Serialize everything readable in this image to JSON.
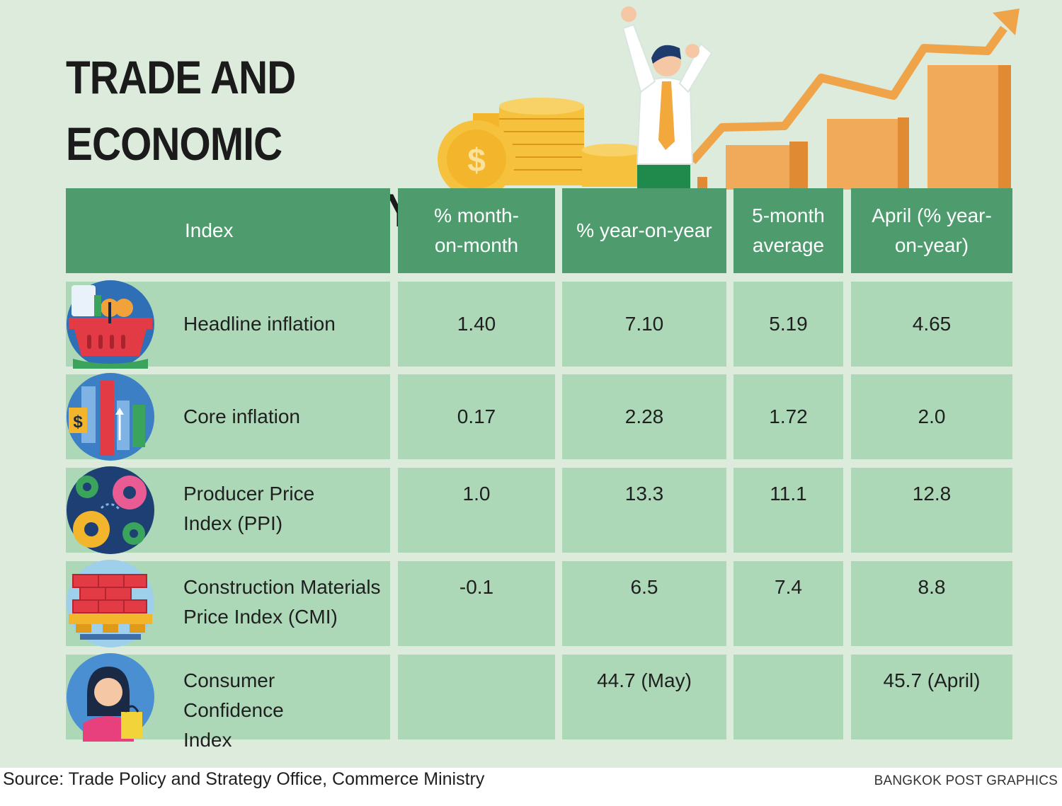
{
  "title_line1": "TRADE AND ECONOMIC",
  "title_line2": "INDICES FOR MAY",
  "source": "Source: Trade Policy and Strategy Office, Commerce Ministry",
  "credit": "BANGKOK POST GRAPHICS",
  "colors": {
    "background": "#dcebdc",
    "header": "#4e9c6e",
    "cell": "#acd8b8",
    "arrow": "#f0a44a",
    "bar": "#f1a95a",
    "coin": "#f6c23e"
  },
  "icons": [
    "shopping-basket-icon",
    "price-chart-icon",
    "gears-icon",
    "bricks-icon",
    "shopper-icon"
  ],
  "chart_data": {
    "type": "table",
    "title": "TRADE AND ECONOMIC INDICES FOR MAY",
    "columns": [
      "Index",
      "% month-on-month",
      "% year-on-year",
      "5-month average",
      "April (% year-on-year)"
    ],
    "rows": [
      {
        "index": "Headline inflation",
        "mom": "1.40",
        "yoy": "7.10",
        "avg5": "5.19",
        "april": "4.65"
      },
      {
        "index": "Core inflation",
        "mom": "0.17",
        "yoy": "2.28",
        "avg5": "1.72",
        "april": "2.0"
      },
      {
        "index": "Producer Price Index (PPI)",
        "mom": "1.0",
        "yoy": "13.3",
        "avg5": "11.1",
        "april": "12.8"
      },
      {
        "index": "Construction Materials Price Index (CMI)",
        "mom": "-0.1",
        "yoy": "6.5",
        "avg5": "7.4",
        "april": "8.8"
      },
      {
        "index": "Consumer Confidence Index",
        "mom": "",
        "yoy": "44.7 (May)",
        "avg5": "",
        "april": "45.7 (April)"
      }
    ]
  }
}
